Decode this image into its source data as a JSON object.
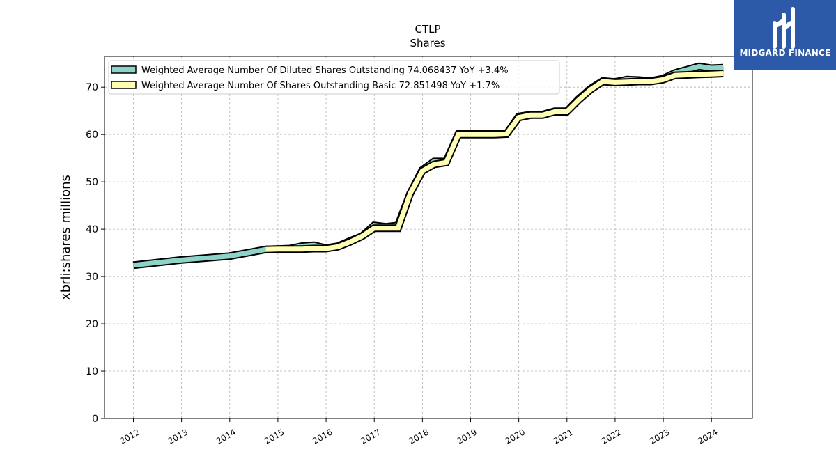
{
  "chart_data": {
    "type": "line",
    "title": "CTLP",
    "subtitle": "Shares",
    "xlabel": "",
    "ylabel": "xbrli:shares millions",
    "xlim": [
      2011.4,
      2024.85
    ],
    "ylim": [
      0,
      76.5
    ],
    "x_ticks": [
      "2012",
      "2013",
      "2014",
      "2015",
      "2016",
      "2017",
      "2018",
      "2019",
      "2020",
      "2021",
      "2022",
      "2023",
      "2024"
    ],
    "y_ticks": [
      0,
      10,
      20,
      30,
      40,
      50,
      60,
      70
    ],
    "grid": true,
    "legend_position": "top-left",
    "series": [
      {
        "name": "Weighted Average Number Of Diluted Shares Outstanding",
        "legend_label": "Weighted Average Number Of Diluted Shares Outstanding  74.068437 YoY +3.4%",
        "color": "#8dd3c7",
        "points": [
          [
            "2011-12-31",
            32.4
          ],
          [
            "2012-12-31",
            33.5
          ],
          [
            "2013-12-31",
            34.3
          ],
          [
            "2014-09-30",
            35.7
          ],
          [
            "2014-12-31",
            35.8
          ],
          [
            "2015-03-31",
            35.9
          ],
          [
            "2015-06-30",
            36.4
          ],
          [
            "2015-09-30",
            36.6
          ],
          [
            "2015-12-31",
            36.0
          ],
          [
            "2016-03-31",
            36.4
          ],
          [
            "2016-06-30",
            37.5
          ],
          [
            "2016-09-30",
            38.5
          ],
          [
            "2016-12-31",
            40.8
          ],
          [
            "2017-03-31",
            40.5
          ],
          [
            "2017-06-30",
            40.8
          ],
          [
            "2017-09-30",
            47.5
          ],
          [
            "2017-12-31",
            52.5
          ],
          [
            "2018-03-31",
            54.3
          ],
          [
            "2018-06-30",
            54.3
          ],
          [
            "2018-09-30",
            60.1
          ],
          [
            "2018-12-31",
            60.1
          ],
          [
            "2019-03-31",
            60.1
          ],
          [
            "2019-06-30",
            60.1
          ],
          [
            "2019-09-30",
            60.1
          ],
          [
            "2019-12-31",
            63.8
          ],
          [
            "2020-03-31",
            64.2
          ],
          [
            "2020-06-30",
            64.2
          ],
          [
            "2020-09-30",
            64.9
          ],
          [
            "2020-12-31",
            64.9
          ],
          [
            "2021-03-31",
            67.5
          ],
          [
            "2021-06-30",
            69.7
          ],
          [
            "2021-09-30",
            71.3
          ],
          [
            "2021-12-31",
            71.1
          ],
          [
            "2022-03-31",
            71.6
          ],
          [
            "2022-06-30",
            71.5
          ],
          [
            "2022-09-30",
            71.3
          ],
          [
            "2022-12-31",
            71.8
          ],
          [
            "2023-03-31",
            73.0
          ],
          [
            "2023-06-30",
            73.7
          ],
          [
            "2023-09-30",
            74.4
          ],
          [
            "2023-12-31",
            74.0
          ],
          [
            "2024-03-31",
            74.1
          ]
        ]
      },
      {
        "name": "Weighted Average Number Of Shares Outstanding Basic",
        "legend_label": "Weighted Average Number Of Shares Outstanding Basic  72.851498 YoY +1.7%",
        "color": "#ffffb3",
        "points": [
          [
            "2014-09-30",
            35.7
          ],
          [
            "2014-12-31",
            35.8
          ],
          [
            "2015-03-31",
            35.8
          ],
          [
            "2015-06-30",
            35.8
          ],
          [
            "2015-09-30",
            35.9
          ],
          [
            "2015-12-31",
            35.9
          ],
          [
            "2016-03-31",
            36.3
          ],
          [
            "2016-06-30",
            37.3
          ],
          [
            "2016-09-30",
            38.5
          ],
          [
            "2016-12-31",
            40.2
          ],
          [
            "2017-03-31",
            40.2
          ],
          [
            "2017-06-30",
            40.2
          ],
          [
            "2017-09-30",
            47.5
          ],
          [
            "2017-12-31",
            52.3
          ],
          [
            "2018-03-31",
            53.7
          ],
          [
            "2018-06-30",
            54.1
          ],
          [
            "2018-09-30",
            60.0
          ],
          [
            "2018-12-31",
            60.0
          ],
          [
            "2019-03-31",
            60.0
          ],
          [
            "2019-06-30",
            60.0
          ],
          [
            "2019-09-30",
            60.1
          ],
          [
            "2019-12-31",
            63.6
          ],
          [
            "2020-03-31",
            64.1
          ],
          [
            "2020-06-30",
            64.1
          ],
          [
            "2020-09-30",
            64.8
          ],
          [
            "2020-12-31",
            64.8
          ],
          [
            "2021-03-31",
            67.3
          ],
          [
            "2021-06-30",
            69.5
          ],
          [
            "2021-09-30",
            71.2
          ],
          [
            "2021-12-31",
            71.0
          ],
          [
            "2022-03-31",
            71.1
          ],
          [
            "2022-06-30",
            71.2
          ],
          [
            "2022-09-30",
            71.2
          ],
          [
            "2022-12-31",
            71.6
          ],
          [
            "2023-03-31",
            72.5
          ],
          [
            "2023-06-30",
            72.6
          ],
          [
            "2023-09-30",
            72.7
          ],
          [
            "2023-12-31",
            72.8
          ],
          [
            "2024-03-31",
            72.9
          ]
        ]
      }
    ]
  },
  "brand": {
    "name": "MIDGARD FINANCE",
    "color": "#2c5aa8"
  }
}
